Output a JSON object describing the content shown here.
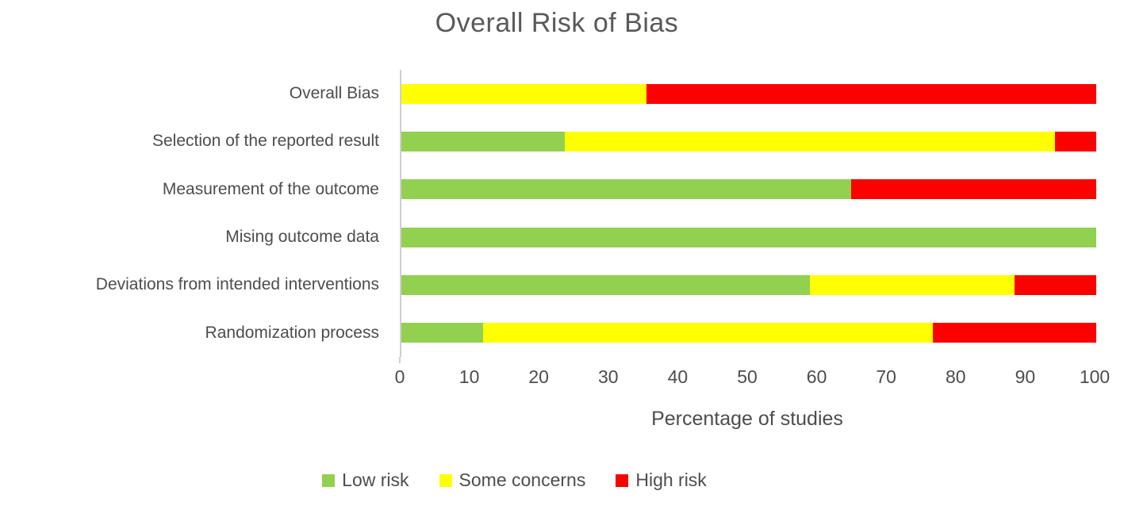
{
  "chart_data": {
    "type": "bar",
    "orientation": "horizontal",
    "stacked": true,
    "title": "Overall Risk of Bias",
    "xlabel": "Percentage of studies",
    "xlim": [
      0,
      100
    ],
    "xticks": [
      0,
      10,
      20,
      30,
      40,
      50,
      60,
      70,
      80,
      90,
      100
    ],
    "grid": false,
    "legend_position": "bottom",
    "categories_top_to_bottom": [
      "Overall Bias",
      "Selection of the reported result",
      "Measurement of the outcome",
      "Mising outcome data",
      "Deviations from intended interventions",
      "Randomization process"
    ],
    "series": [
      {
        "name": "Low risk",
        "color": "#92d050",
        "values": [
          0,
          23.5,
          64.7,
          100,
          58.8,
          11.8
        ]
      },
      {
        "name": "Some concerns",
        "color": "#ffff00",
        "values": [
          35.3,
          70.6,
          0,
          0,
          29.4,
          64.7
        ]
      },
      {
        "name": "High risk",
        "color": "#ff0000",
        "values": [
          64.7,
          5.9,
          35.3,
          0,
          11.8,
          23.5
        ]
      }
    ]
  },
  "colors": {
    "title_text": "#595959",
    "axis_text": "#4d4d4d",
    "axis_line": "#cfcfcf",
    "background": "#ffffff"
  }
}
